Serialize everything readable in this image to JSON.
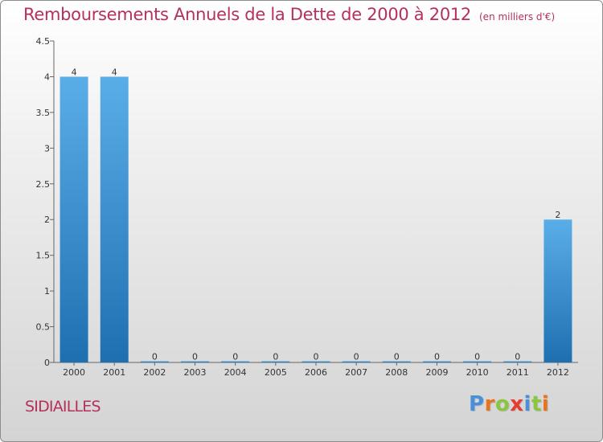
{
  "header": {
    "title": "Remboursements Annuels de la Dette de 2000 à 2012",
    "unit": "(en milliers d'€)"
  },
  "footer": {
    "commune": "SIDIAILLES",
    "logo_text": "Proxiti"
  },
  "colors": {
    "title": "#b5315a",
    "bar_top": "#5aaee8",
    "bar_bottom": "#1e6fb0",
    "logo": [
      "#4a90d9",
      "#e8731e",
      "#8cc63f",
      "#e63b2e",
      "#4a90d9",
      "#8cc63f",
      "#e8731e"
    ]
  },
  "chart_data": {
    "type": "bar",
    "title": "Remboursements Annuels de la Dette de 2000 à 2012",
    "subtitle": "(en milliers d'€)",
    "categories": [
      "2000",
      "2001",
      "2002",
      "2003",
      "2004",
      "2005",
      "2006",
      "2007",
      "2008",
      "2009",
      "2010",
      "2011",
      "2012"
    ],
    "values": [
      4,
      4,
      0,
      0,
      0,
      0,
      0,
      0,
      0,
      0,
      0,
      0,
      2
    ],
    "data_labels": [
      "4",
      "4",
      "0",
      "0",
      "0",
      "0",
      "0",
      "0",
      "0",
      "0",
      "0",
      "0",
      "2"
    ],
    "yticks": [
      "0",
      "0.5",
      "1",
      "1.5",
      "2",
      "2.5",
      "3",
      "3.5",
      "4",
      "4.5"
    ],
    "ylim": [
      0,
      4.5
    ],
    "xlabel": "",
    "ylabel": "",
    "grid": false,
    "legend": "none"
  }
}
